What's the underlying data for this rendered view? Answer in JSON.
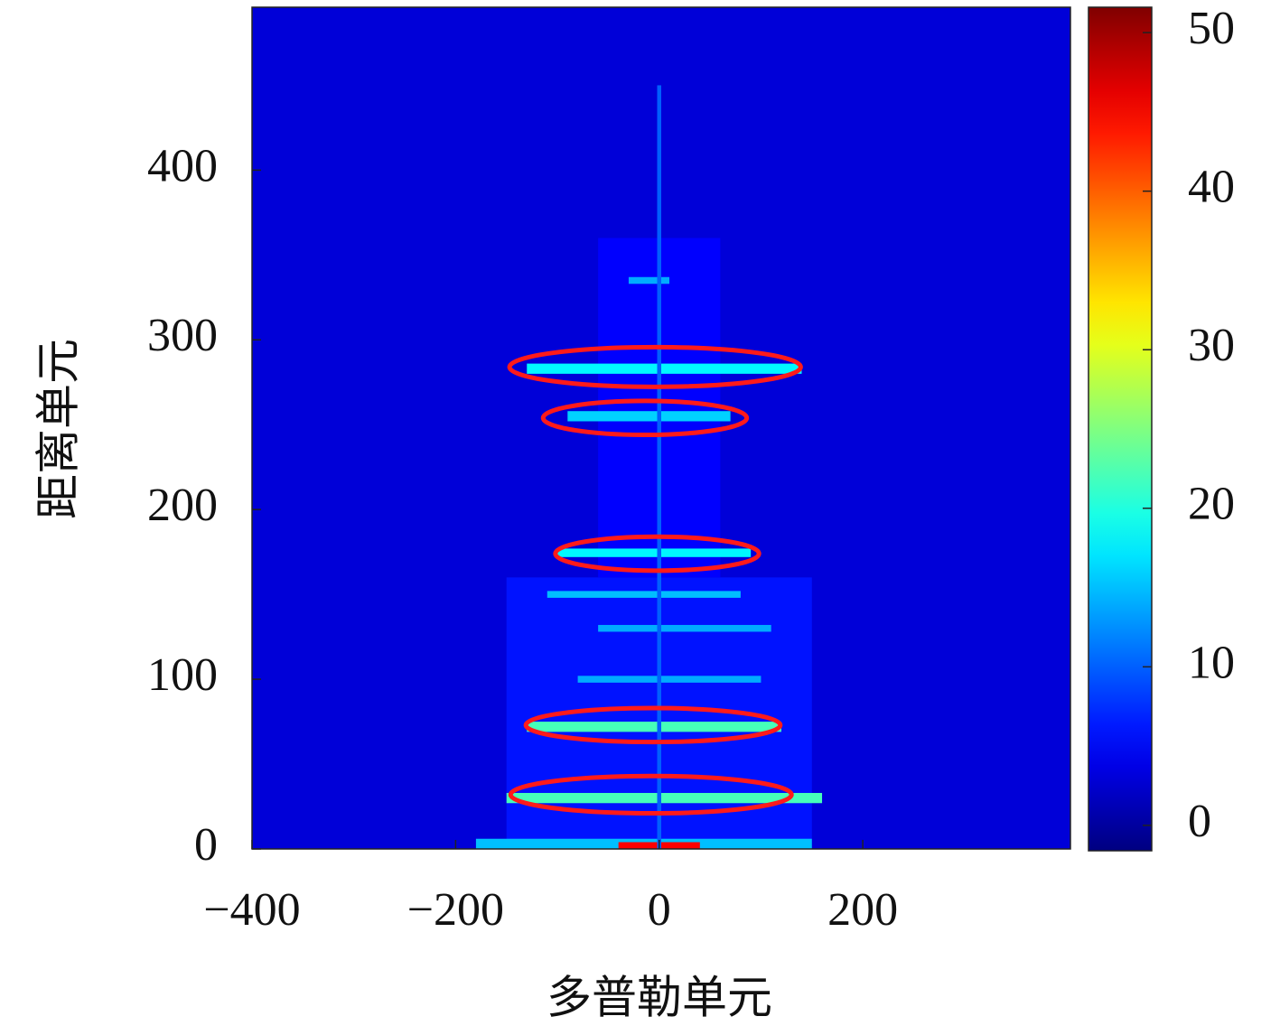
{
  "chart_data": {
    "type": "heatmap",
    "xlabel": "多普勒单元",
    "ylabel": "距离单元",
    "xlim": [
      -400,
      404
    ],
    "ylim": [
      0,
      496
    ],
    "xticks": [
      {
        "value": -400,
        "label": "−400"
      },
      {
        "value": -200,
        "label": "−200"
      },
      0,
      200
    ],
    "yticks": [
      0,
      100,
      200,
      300,
      400
    ],
    "colormap": "jet",
    "clim": [
      -1.6,
      51.6
    ],
    "cticks": [
      0,
      10,
      20,
      30,
      40,
      50
    ],
    "background": 3,
    "cells": [
      {
        "x0": -150,
        "x1": 150,
        "y0": 0,
        "y1": 160,
        "value": 6
      },
      {
        "x0": -60,
        "x1": 60,
        "y0": 160,
        "y1": 360,
        "value": 5
      },
      {
        "x0": -180,
        "x1": 150,
        "y0": 0,
        "y1": 6,
        "value": 15
      },
      {
        "x0": -40,
        "x1": 40,
        "y0": 0,
        "y1": 4,
        "value": 45
      },
      {
        "x0": -150,
        "x1": 160,
        "y0": 27,
        "y1": 33,
        "value": 22
      },
      {
        "x0": -130,
        "x1": 120,
        "y0": 69,
        "y1": 75,
        "value": 22
      },
      {
        "x0": -80,
        "x1": 100,
        "y0": 98,
        "y1": 102,
        "value": 14
      },
      {
        "x0": -60,
        "x1": 110,
        "y0": 128,
        "y1": 132,
        "value": 14
      },
      {
        "x0": -110,
        "x1": 80,
        "y0": 148,
        "y1": 152,
        "value": 15
      },
      {
        "x0": -100,
        "x1": 90,
        "y0": 172,
        "y1": 177,
        "value": 18
      },
      {
        "x0": -90,
        "x1": 70,
        "y0": 252,
        "y1": 258,
        "value": 16
      },
      {
        "x0": -130,
        "x1": 140,
        "y0": 280,
        "y1": 286,
        "value": 18
      },
      {
        "x0": -30,
        "x1": 10,
        "y0": 333,
        "y1": 337,
        "value": 14
      },
      {
        "x0": -2,
        "x1": 2,
        "y0": 0,
        "y1": 450,
        "value": 10
      }
    ],
    "ellipses": {
      "color": "#ff1a1a",
      "items": [
        {
          "x": -4,
          "y": 284,
          "rx": 143,
          "ry": 11.7
        },
        {
          "x": -14,
          "y": 254,
          "rx": 100,
          "ry": 10
        },
        {
          "x": -2,
          "y": 174,
          "rx": 100,
          "ry": 10
        },
        {
          "x": -6,
          "y": 73,
          "rx": 125,
          "ry": 10
        },
        {
          "x": -8,
          "y": 32,
          "rx": 138,
          "ry": 11
        }
      ]
    }
  }
}
